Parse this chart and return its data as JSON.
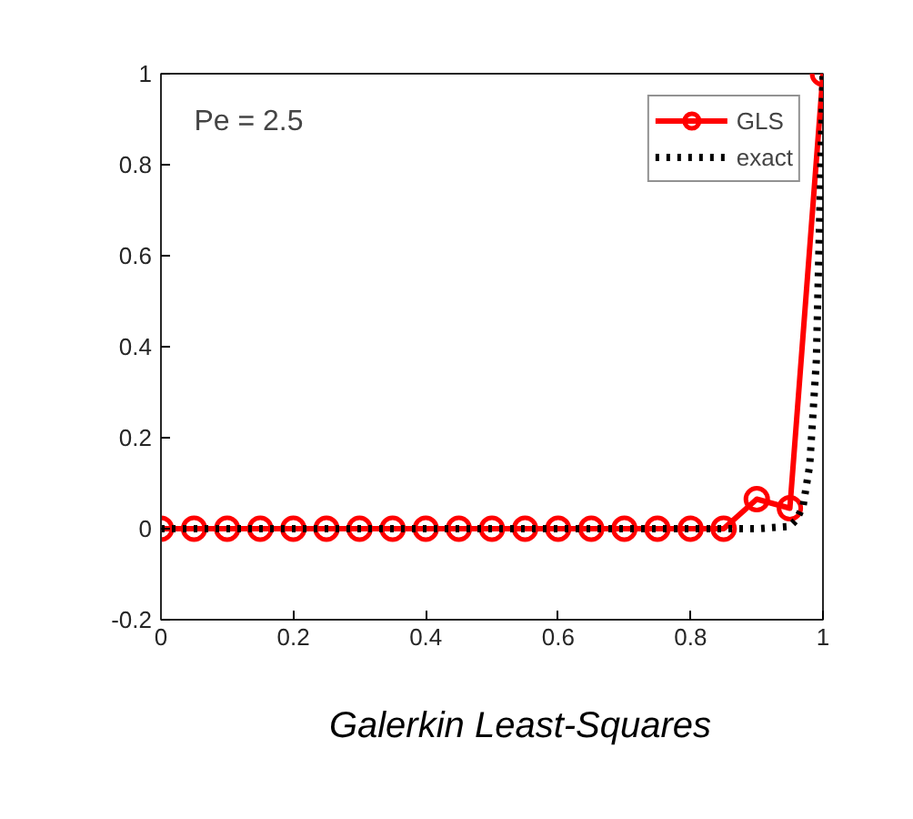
{
  "chart_data": {
    "type": "line",
    "xlim": [
      0,
      1
    ],
    "ylim": [
      -0.2,
      1
    ],
    "xticks": [
      0,
      0.2,
      0.4,
      0.6,
      0.8,
      1
    ],
    "yticks": [
      -0.2,
      0,
      0.2,
      0.4,
      0.6,
      0.8,
      1
    ],
    "grid": false,
    "legend": "top right",
    "annotations": [
      "Pe = 2.5",
      "Galerkin Least-Squares"
    ],
    "series": [
      {
        "name": "GLS",
        "color": "#ff0000",
        "marker": "circle",
        "line_style": "solid",
        "x": [
          0,
          0.05,
          0.1,
          0.15,
          0.2,
          0.25,
          0.3,
          0.35,
          0.4,
          0.45,
          0.5,
          0.55,
          0.6,
          0.65,
          0.7,
          0.75,
          0.8,
          0.85,
          0.9,
          0.95,
          1
        ],
        "values": [
          0,
          0,
          0,
          0,
          0,
          0,
          0,
          0,
          0,
          0,
          0,
          0,
          0,
          0,
          0,
          0,
          0,
          0,
          0.065,
          0.045,
          1
        ]
      },
      {
        "name": "exact",
        "color": "#000000",
        "marker": "none",
        "line_style": "dotted",
        "x": [
          0,
          0.9,
          0.95,
          0.96,
          0.97,
          0.98,
          0.99,
          1
        ],
        "values": [
          0,
          0,
          0.005,
          0.02,
          0.05,
          0.14,
          0.37,
          1
        ]
      }
    ]
  }
}
